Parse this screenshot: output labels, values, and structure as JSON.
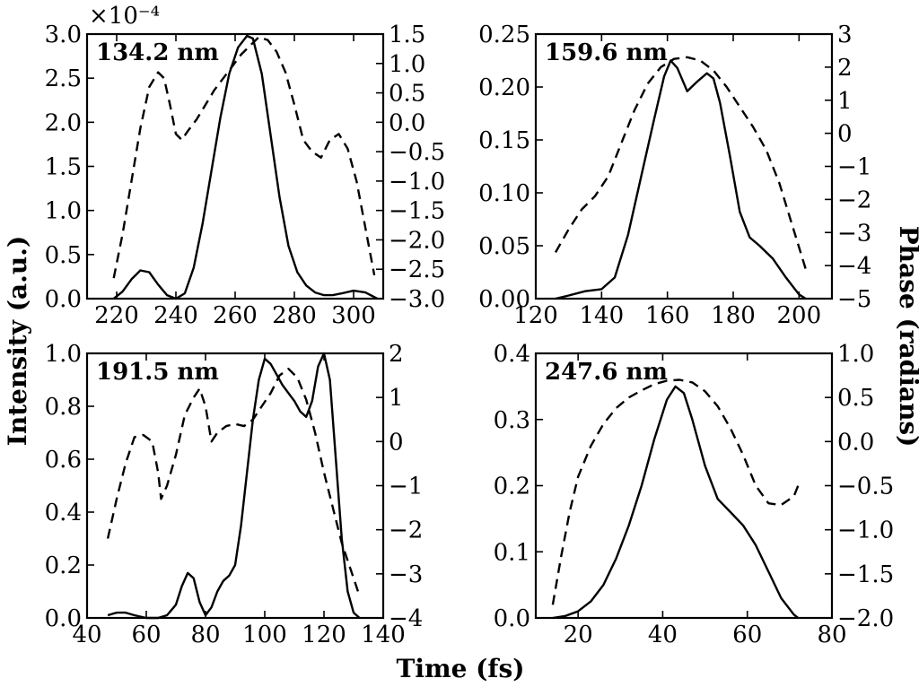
{
  "figure": {
    "xlabel": "Time (fs)",
    "ylabel_left": "Intensity (a.u.)",
    "ylabel_right": "Phase (radians)"
  },
  "chart_data": [
    {
      "type": "line",
      "label": "134.2 nm",
      "xlim": [
        210,
        310
      ],
      "xticks": [
        220,
        240,
        260,
        280,
        300
      ],
      "xtick_labels": [
        "220",
        "240",
        "260",
        "280",
        "300"
      ],
      "ylim_left": [
        0,
        3.0
      ],
      "yticks_left": [
        0,
        0.5,
        1.0,
        1.5,
        2.0,
        2.5,
        3.0
      ],
      "ytick_labels_left": [
        "0.0",
        "0.5",
        "1.0",
        "1.5",
        "2.0",
        "2.5",
        "3.0"
      ],
      "ylim_right": [
        -3.0,
        1.5
      ],
      "yticks_right": [
        -3.0,
        -2.5,
        -2.0,
        -1.5,
        -1.0,
        -0.5,
        0.0,
        0.5,
        1.0,
        1.5
      ],
      "ytick_labels_right": [
        "−3.0",
        "−2.5",
        "−2.0",
        "−1.5",
        "−1.0",
        "−0.5",
        "0.0",
        "0.5",
        "1.0",
        "1.5"
      ],
      "offset_text": "×10⁻⁴",
      "series": [
        {
          "name": "intensity",
          "style": "solid",
          "axis": "left",
          "x": [
            219,
            222,
            225,
            228,
            231,
            234,
            237,
            240,
            243,
            246,
            249,
            252,
            255,
            258,
            261,
            264,
            266,
            269,
            272,
            275,
            278,
            281,
            284,
            287,
            290,
            293,
            296,
            300,
            304,
            308
          ],
          "y": [
            0.0,
            0.08,
            0.22,
            0.32,
            0.3,
            0.16,
            0.04,
            0.0,
            0.06,
            0.35,
            0.85,
            1.45,
            2.05,
            2.55,
            2.85,
            2.98,
            2.95,
            2.55,
            1.85,
            1.15,
            0.6,
            0.3,
            0.15,
            0.07,
            0.04,
            0.04,
            0.06,
            0.09,
            0.07,
            0.0
          ]
        },
        {
          "name": "phase",
          "style": "dashed",
          "axis": "right",
          "x": [
            219,
            222,
            225,
            228,
            231,
            234,
            236,
            238,
            240,
            242,
            244,
            247,
            250,
            253,
            256,
            259,
            262,
            265,
            268,
            271,
            274,
            277,
            280,
            283,
            286,
            289,
            292,
            295,
            298,
            301,
            304,
            307
          ],
          "y": [
            -2.65,
            -1.9,
            -1.0,
            -0.1,
            0.6,
            0.85,
            0.75,
            0.3,
            -0.2,
            -0.3,
            -0.15,
            0.05,
            0.3,
            0.55,
            0.75,
            0.95,
            1.15,
            1.3,
            1.45,
            1.4,
            1.2,
            0.85,
            0.3,
            -0.3,
            -0.5,
            -0.6,
            -0.3,
            -0.2,
            -0.45,
            -1.0,
            -1.8,
            -2.6
          ]
        }
      ]
    },
    {
      "type": "line",
      "label": "159.6 nm",
      "xlim": [
        120,
        210
      ],
      "xticks": [
        120,
        140,
        160,
        180,
        200
      ],
      "xtick_labels": [
        "120",
        "140",
        "160",
        "180",
        "200"
      ],
      "ylim_left": [
        0,
        0.25
      ],
      "yticks_left": [
        0,
        0.05,
        0.1,
        0.15,
        0.2,
        0.25
      ],
      "ytick_labels_left": [
        "0.00",
        "0.05",
        "0.10",
        "0.15",
        "0.20",
        "0.25"
      ],
      "ylim_right": [
        -5,
        3
      ],
      "yticks_right": [
        -5,
        -4,
        -3,
        -2,
        -1,
        0,
        1,
        2,
        3
      ],
      "ytick_labels_right": [
        "−5",
        "−4",
        "−3",
        "−2",
        "−1",
        "0",
        "1",
        "2",
        "3"
      ],
      "series": [
        {
          "name": "intensity",
          "style": "solid",
          "axis": "left",
          "x": [
            126,
            130,
            135,
            140,
            144,
            148,
            152,
            156,
            159,
            161,
            163,
            166,
            169,
            172,
            174,
            176,
            179,
            182,
            185,
            188,
            192,
            196,
            200,
            202
          ],
          "y": [
            0.0,
            0.003,
            0.007,
            0.009,
            0.02,
            0.06,
            0.115,
            0.17,
            0.21,
            0.225,
            0.218,
            0.196,
            0.205,
            0.213,
            0.208,
            0.185,
            0.135,
            0.082,
            0.058,
            0.05,
            0.038,
            0.02,
            0.004,
            0.0
          ]
        },
        {
          "name": "phase",
          "style": "dashed",
          "axis": "right",
          "x": [
            126,
            130,
            134,
            138,
            142,
            146,
            150,
            154,
            158,
            162,
            166,
            170,
            174,
            178,
            182,
            186,
            190,
            194,
            198,
            202
          ],
          "y": [
            -3.6,
            -2.9,
            -2.3,
            -1.9,
            -1.3,
            -0.3,
            0.7,
            1.5,
            2.0,
            2.25,
            2.3,
            2.2,
            1.9,
            1.4,
            0.8,
            0.2,
            -0.5,
            -1.5,
            -2.8,
            -4.1
          ]
        }
      ]
    },
    {
      "type": "line",
      "label": "191.5 nm",
      "xlim": [
        40,
        140
      ],
      "xticks": [
        40,
        60,
        80,
        100,
        120,
        140
      ],
      "xtick_labels": [
        "40",
        "60",
        "80",
        "100",
        "120",
        "140"
      ],
      "ylim_left": [
        0,
        1.0
      ],
      "yticks_left": [
        0,
        0.2,
        0.4,
        0.6,
        0.8,
        1.0
      ],
      "ytick_labels_left": [
        "0.0",
        "0.2",
        "0.4",
        "0.6",
        "0.8",
        "1.0"
      ],
      "ylim_right": [
        -4,
        2
      ],
      "yticks_right": [
        -4,
        -3,
        -2,
        -1,
        0,
        1,
        2
      ],
      "ytick_labels_right": [
        "−4",
        "−3",
        "−2",
        "−1",
        "0",
        "1",
        "2"
      ],
      "series": [
        {
          "name": "intensity",
          "style": "solid",
          "axis": "left",
          "x": [
            47,
            50,
            53,
            56,
            60,
            64,
            67,
            70,
            72,
            74,
            76,
            78,
            80,
            82,
            84,
            86,
            88,
            90,
            92,
            94,
            96,
            98,
            100,
            102,
            104,
            106,
            108,
            110,
            112,
            114,
            116,
            118,
            120,
            122,
            124,
            126,
            128,
            130,
            132
          ],
          "y": [
            0.01,
            0.02,
            0.02,
            0.01,
            0.0,
            0.0,
            0.01,
            0.05,
            0.12,
            0.17,
            0.15,
            0.06,
            0.01,
            0.04,
            0.1,
            0.14,
            0.16,
            0.2,
            0.35,
            0.55,
            0.75,
            0.9,
            0.98,
            0.96,
            0.92,
            0.88,
            0.85,
            0.82,
            0.78,
            0.76,
            0.82,
            0.95,
            1.0,
            0.9,
            0.6,
            0.3,
            0.1,
            0.02,
            0.0
          ]
        },
        {
          "name": "phase",
          "style": "dashed",
          "axis": "right",
          "x": [
            47,
            50,
            53,
            56,
            59,
            62,
            64,
            65,
            67,
            70,
            73,
            76,
            78,
            80,
            82,
            84,
            87,
            90,
            93,
            96,
            99,
            102,
            105,
            108,
            111,
            114,
            117,
            120,
            123,
            126,
            129,
            132
          ],
          "y": [
            -2.2,
            -1.3,
            -0.5,
            0.1,
            0.15,
            0.0,
            -0.7,
            -1.3,
            -1.0,
            -0.3,
            0.6,
            1.0,
            1.2,
            0.8,
            0.0,
            0.2,
            0.35,
            0.4,
            0.35,
            0.5,
            0.8,
            1.1,
            1.5,
            1.65,
            1.45,
            0.95,
            0.2,
            -0.7,
            -1.5,
            -2.3,
            -2.9,
            -3.5
          ]
        }
      ]
    },
    {
      "type": "line",
      "label": "247.6 nm",
      "xlim": [
        10,
        80
      ],
      "xticks": [
        20,
        40,
        60,
        80
      ],
      "xtick_labels": [
        "20",
        "40",
        "60",
        "80"
      ],
      "ylim_left": [
        0,
        0.4
      ],
      "yticks_left": [
        0,
        0.1,
        0.2,
        0.3,
        0.4
      ],
      "ytick_labels_left": [
        "0.0",
        "0.1",
        "0.2",
        "0.3",
        "0.4"
      ],
      "ylim_right": [
        -2.0,
        1.0
      ],
      "yticks_right": [
        -2.0,
        -1.5,
        -1.0,
        -0.5,
        0.0,
        0.5,
        1.0
      ],
      "ytick_labels_right": [
        "−2.0",
        "−1.5",
        "−1.0",
        "−0.5",
        "0.0",
        "0.5",
        "1.0"
      ],
      "series": [
        {
          "name": "intensity",
          "style": "solid",
          "axis": "left",
          "x": [
            14,
            17,
            20,
            23,
            26,
            29,
            32,
            35,
            38,
            41,
            43,
            45,
            47,
            50,
            53,
            56,
            59,
            62,
            65,
            68,
            71,
            72
          ],
          "y": [
            0.0,
            0.003,
            0.01,
            0.025,
            0.05,
            0.09,
            0.14,
            0.2,
            0.27,
            0.33,
            0.35,
            0.34,
            0.3,
            0.23,
            0.18,
            0.16,
            0.14,
            0.11,
            0.07,
            0.03,
            0.005,
            0.0
          ]
        },
        {
          "name": "phase",
          "style": "dashed",
          "axis": "right",
          "x": [
            14,
            16,
            18,
            20,
            23,
            26,
            29,
            32,
            35,
            38,
            41,
            44,
            47,
            50,
            53,
            56,
            59,
            62,
            65,
            68,
            71,
            72
          ],
          "y": [
            -1.85,
            -1.3,
            -0.8,
            -0.4,
            -0.05,
            0.2,
            0.38,
            0.5,
            0.58,
            0.65,
            0.69,
            0.7,
            0.67,
            0.57,
            0.4,
            0.15,
            -0.15,
            -0.5,
            -0.7,
            -0.72,
            -0.62,
            -0.5
          ]
        }
      ]
    }
  ]
}
